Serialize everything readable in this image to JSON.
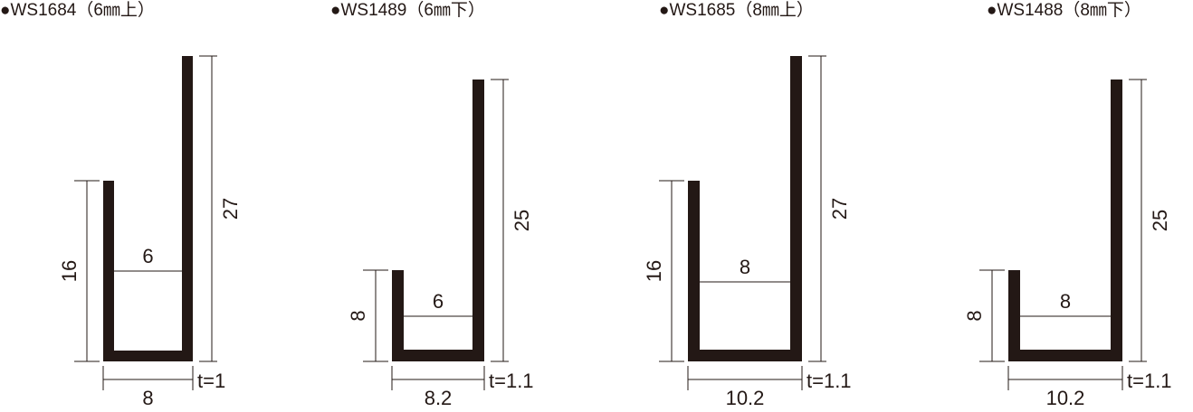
{
  "profiles": [
    {
      "title": "●WS1684（6㎜上）",
      "left_height": "16",
      "right_height": "27",
      "inner_width": "6",
      "outer_width": "8",
      "thickness": "t=1"
    },
    {
      "title": "●WS1489（6㎜下）",
      "left_height": "8",
      "right_height": "25",
      "inner_width": "6",
      "outer_width": "8.2",
      "thickness": "t=1.1"
    },
    {
      "title": "●WS1685（8㎜上）",
      "left_height": "16",
      "right_height": "27",
      "inner_width": "8",
      "outer_width": "10.2",
      "thickness": "t=1.1"
    },
    {
      "title": "●WS1488（8㎜下）",
      "left_height": "8",
      "right_height": "25",
      "inner_width": "8",
      "outer_width": "10.2",
      "thickness": "t=1.1"
    }
  ]
}
